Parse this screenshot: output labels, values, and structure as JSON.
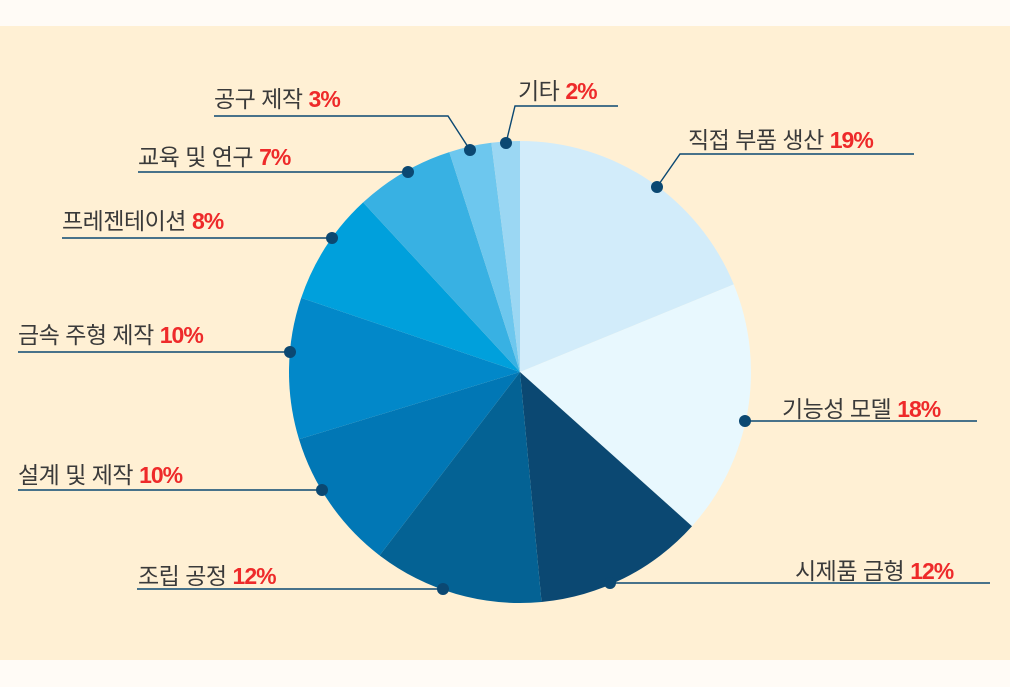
{
  "chart_data": {
    "type": "pie",
    "title": "",
    "start_angle": "12 o'clock, clockwise",
    "legend": "callout labels with leader lines",
    "categories": [
      "직접 부품 생산",
      "기능성 모델",
      "시제품 금형",
      "조립 공정",
      "설계 및 제작",
      "금속 주형 제작",
      "프레젠테이션",
      "교육 및 연구",
      "공구 제작",
      "기타"
    ],
    "values": [
      19,
      18,
      12,
      12,
      10,
      10,
      8,
      7,
      3,
      2
    ],
    "colors": [
      "#d2ecfa",
      "#e8f8fe",
      "#0b4872",
      "#046294",
      "#0177b5",
      "#0288c9",
      "#00a0dc",
      "#38b1e3",
      "#6dc7ee",
      "#9bd7f3"
    ],
    "units": "%"
  },
  "labels": [
    {
      "text": "직접 부품 생산",
      "pct": "19%"
    },
    {
      "text": "기능성 모델",
      "pct": "18%"
    },
    {
      "text": "시제품 금형",
      "pct": "12%"
    },
    {
      "text": "조립 공정",
      "pct": "12%"
    },
    {
      "text": "설계 및 제작",
      "pct": "10%"
    },
    {
      "text": "금속 주형 제작",
      "pct": "10%"
    },
    {
      "text": "프레젠테이션",
      "pct": "8%"
    },
    {
      "text": "교육 및 연구",
      "pct": "7%"
    },
    {
      "text": "공구 제작",
      "pct": "3%"
    },
    {
      "text": "기타",
      "pct": "2%"
    }
  ],
  "style": {
    "background": "#fff0d4",
    "leader_color": "#0b4872",
    "pct_color": "#ee2a2a",
    "label_color": "#3a3a3a"
  }
}
